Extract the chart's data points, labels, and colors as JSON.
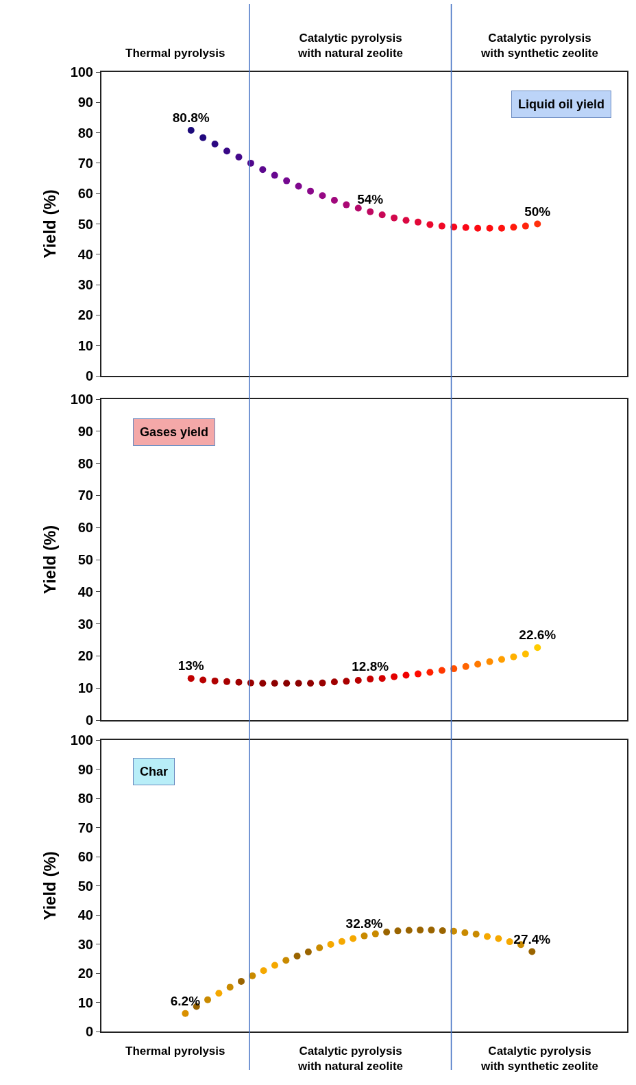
{
  "chart_data": [
    {
      "type": "scatter",
      "categories": [
        null,
        null,
        null,
        null,
        null,
        null,
        null,
        null,
        null,
        null,
        null,
        null,
        null,
        null,
        null,
        null,
        null,
        null,
        null,
        null,
        null,
        null,
        null,
        null,
        null,
        null,
        null,
        null,
        null,
        null,
        null,
        null,
        null,
        null,
        null,
        null,
        null,
        null,
        null,
        null,
        null,
        null,
        null,
        null
      ],
      "ylabel": "Yield (%)",
      "ylim": [
        0,
        100
      ],
      "yticks": [
        0,
        10,
        20,
        30,
        40,
        50,
        60,
        70,
        80,
        90,
        100
      ],
      "tick_labels": "y",
      "marker": "circle",
      "series": [
        {
          "name": "Liquid oil yield",
          "values": [
            null,
            null,
            null,
            null,
            null,
            null,
            null,
            80.8,
            78.4,
            76.3,
            74.0,
            72.0,
            70.0,
            67.9,
            66.0,
            64.2,
            62.4,
            60.8,
            59.3,
            57.8,
            56.3,
            55.2,
            54,
            53.0,
            52.0,
            51.2,
            50.6,
            49.8,
            49.3,
            49.0,
            48.8,
            48.6,
            48.6,
            48.6,
            48.9,
            49.3,
            50,
            null,
            null,
            null,
            null,
            null,
            null,
            null
          ],
          "value_labels": [
            null,
            null,
            null,
            null,
            null,
            null,
            null,
            "80.8%",
            null,
            null,
            null,
            null,
            null,
            null,
            null,
            null,
            null,
            null,
            null,
            null,
            null,
            null,
            "54%",
            null,
            null,
            null,
            null,
            null,
            null,
            null,
            null,
            null,
            null,
            null,
            null,
            null,
            "50%",
            null,
            null,
            null,
            null,
            null,
            null,
            null
          ],
          "colors": [
            null,
            null,
            null,
            null,
            null,
            null,
            null,
            "#1c0a7a",
            "#22087e",
            "#2c0882",
            "#380886",
            "#44088a",
            "#50088c",
            "#5c088e",
            "#680890",
            "#740890",
            "#80088e",
            "#8a088a",
            "#960884",
            "#a0087c",
            "#aa0874",
            "#b4086a",
            "#be0860",
            "#c80856",
            "#d2084c",
            "#da0842",
            "#e20838",
            "#ea082e",
            "#f00826",
            "#f6081e",
            "#fa0818",
            "#fc0a12",
            "#fe0e10",
            "#ff120e",
            "#ff1a0c",
            "#ff240c",
            "#ff300c",
            null,
            null,
            null,
            null,
            null,
            null,
            null
          ]
        }
      ],
      "annotations": [
        "Thermal pyrolysis",
        "Catalytic pyrolysis\nwith natural zeolite",
        "Catalytic pyrolysis\nwith synthetic zeolite"
      ]
    },
    {
      "type": "scatter",
      "categories": [
        null,
        null,
        null,
        null,
        null,
        null,
        null,
        null,
        null,
        null,
        null,
        null,
        null,
        null,
        null,
        null,
        null,
        null,
        null,
        null,
        null,
        null,
        null,
        null,
        null,
        null,
        null,
        null,
        null,
        null,
        null,
        null,
        null,
        null,
        null,
        null,
        null,
        null,
        null,
        null,
        null,
        null,
        null,
        null
      ],
      "ylabel": "Yield (%)",
      "ylim": [
        0,
        100
      ],
      "yticks": [
        0,
        10,
        20,
        30,
        40,
        50,
        60,
        70,
        80,
        90,
        100
      ],
      "tick_labels": "y",
      "marker": "circle",
      "series": [
        {
          "name": "Gases yield",
          "values": [
            null,
            null,
            null,
            null,
            null,
            null,
            null,
            13,
            12.5,
            12.2,
            12.0,
            11.8,
            11.6,
            11.5,
            11.5,
            11.5,
            11.5,
            11.5,
            11.6,
            11.9,
            12.1,
            12.4,
            12.8,
            13.0,
            13.5,
            14.0,
            14.4,
            14.9,
            15.5,
            16.0,
            16.7,
            17.4,
            18.2,
            18.9,
            19.7,
            20.6,
            22.6,
            null,
            null,
            null,
            null,
            null,
            null,
            null
          ],
          "value_labels": [
            null,
            null,
            null,
            null,
            null,
            null,
            null,
            "13%",
            null,
            null,
            null,
            null,
            null,
            null,
            null,
            null,
            null,
            null,
            null,
            null,
            null,
            null,
            "12.8%",
            null,
            null,
            null,
            null,
            null,
            null,
            null,
            null,
            null,
            null,
            null,
            null,
            null,
            "22.6%",
            null,
            null,
            null,
            null,
            null,
            null,
            null
          ],
          "colors": [
            null,
            null,
            null,
            null,
            null,
            null,
            null,
            "#c00000",
            "#b80000",
            "#b00000",
            "#a80000",
            "#a00000",
            "#980000",
            "#900000",
            "#8c0000",
            "#8a0000",
            "#8c0000",
            "#900000",
            "#980000",
            "#a00000",
            "#aa0000",
            "#b80000",
            "#c60000",
            "#d40000",
            "#e20000",
            "#f00000",
            "#ff0a00",
            "#ff2000",
            "#ff3800",
            "#ff5000",
            "#ff6400",
            "#ff7800",
            "#ff8c00",
            "#ff9e00",
            "#ffb000",
            "#ffbe00",
            "#ffcc00",
            null,
            null,
            null,
            null,
            null,
            null,
            null
          ]
        }
      ]
    },
    {
      "type": "scatter",
      "categories": [
        null,
        null,
        null,
        null,
        null,
        null,
        null,
        null,
        null,
        null,
        null,
        null,
        null,
        null,
        null,
        null,
        null,
        null,
        null,
        null,
        null,
        null,
        null,
        null,
        null,
        null,
        null,
        null,
        null,
        null,
        null,
        null,
        null,
        null,
        null,
        null,
        null,
        null,
        null,
        null,
        null,
        null,
        null,
        null,
        null,
        null,
        null
      ],
      "ylabel": "Yield (%)",
      "ylim": [
        0,
        100
      ],
      "yticks": [
        0,
        10,
        20,
        30,
        40,
        50,
        60,
        70,
        80,
        90,
        100
      ],
      "tick_labels": "y",
      "marker": "circle",
      "series": [
        {
          "name": "Char",
          "values": [
            null,
            null,
            null,
            null,
            null,
            null,
            null,
            6.2,
            8.6,
            10.9,
            13.1,
            15.2,
            17.2,
            19.1,
            20.9,
            22.7,
            24.4,
            25.9,
            27.3,
            28.7,
            29.9,
            30.9,
            31.9,
            32.8,
            33.5,
            34.1,
            34.5,
            34.7,
            34.8,
            34.8,
            34.6,
            34.4,
            33.9,
            33.4,
            32.6,
            31.9,
            30.8,
            29.8,
            27.4,
            null,
            null,
            null,
            null,
            null,
            null,
            null,
            null
          ],
          "value_labels": [
            null,
            null,
            null,
            null,
            null,
            null,
            null,
            "6.2%",
            null,
            null,
            null,
            null,
            null,
            null,
            null,
            null,
            null,
            null,
            null,
            null,
            null,
            null,
            null,
            "32.8%",
            null,
            null,
            null,
            null,
            null,
            null,
            null,
            null,
            null,
            null,
            null,
            null,
            null,
            null,
            "27.4%",
            null,
            null,
            null,
            null,
            null,
            null,
            null,
            null
          ],
          "colors": [
            null,
            null,
            null,
            null,
            null,
            null,
            null,
            "#d99000",
            "#9a6400",
            "#c98a00",
            "#f5a800",
            "#c98a00",
            "#9a6400",
            "#c98a00",
            "#f5a800",
            "#f5a800",
            "#c98a00",
            "#9a6400",
            "#9a6400",
            "#c98a00",
            "#f5a800",
            "#f5a800",
            "#f5a800",
            "#c98a00",
            "#c98a00",
            "#9a6400",
            "#9a6400",
            "#9a6400",
            "#9a6400",
            "#9a6400",
            "#9a6400",
            "#c98a00",
            "#c98a00",
            "#c98a00",
            "#f5a800",
            "#f5a800",
            "#f5a800",
            "#c98a00",
            "#9a6400",
            null,
            null,
            null,
            null,
            null,
            null,
            null,
            null
          ]
        }
      ],
      "annotations": [
        "Thermal pyrolysis",
        "Catalytic pyrolysis\nwith natural zeolite",
        "Catalytic pyrolysis\nwith synthetic zeolite"
      ]
    }
  ]
}
